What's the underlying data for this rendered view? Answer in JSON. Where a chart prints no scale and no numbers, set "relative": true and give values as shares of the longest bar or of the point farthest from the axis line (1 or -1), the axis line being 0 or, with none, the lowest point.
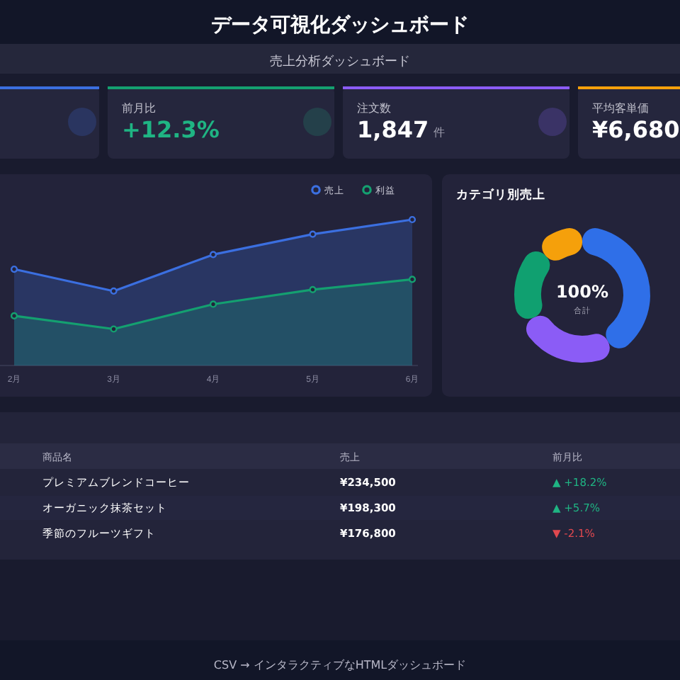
{
  "chart_data": [
    {
      "type": "other",
      "title": "データ可視化ダッシュボード",
      "subtitle": "売上分析ダッシュボード",
      "annotations": [
        "前月比",
        "+12.3%",
        "注文数",
        "1,847",
        "件",
        "平均客単価",
        "¥6,680"
      ]
    },
    {
      "type": "area",
      "categories": [
        "2月",
        "3月",
        "4月",
        "5月",
        "6月"
      ],
      "relative": true,
      "legend": "top right",
      "marker": "circle",
      "line_style": "solid",
      "series": [
        {
          "name": "売上",
          "color": "#3b6fe0",
          "values": [
            0.66,
            0.51,
            0.76,
            0.9,
            1
          ]
        },
        {
          "name": "利益",
          "color": "#14a070",
          "values": [
            0.34,
            0.25,
            0.42,
            0.52,
            0.59
          ]
        }
      ]
    },
    {
      "type": "donut",
      "title": "カテゴリ別売上",
      "categories": [
        null,
        null,
        null,
        null
      ],
      "values": [
        42,
        26,
        20,
        12
      ],
      "colors": [
        "#2f6fe8",
        "#8b5cf6",
        "#10a070",
        "#f5a00b"
      ],
      "annotations": [
        "100%",
        "合計"
      ]
    },
    {
      "type": "other",
      "annotations": [
        "商品名",
        "売上",
        "前月比",
        "プレミアムブレンドコーヒー",
        "¥234,500",
        "▲ +18.2%",
        "オーガニック抹茶セット",
        "¥198,300",
        "▲ +5.7%",
        "季節のフルーツギフト",
        "¥176,800",
        "▼ -2.1%",
        "CSV → インタラクティブなHTMLダッシュボード"
      ]
    }
  ]
}
